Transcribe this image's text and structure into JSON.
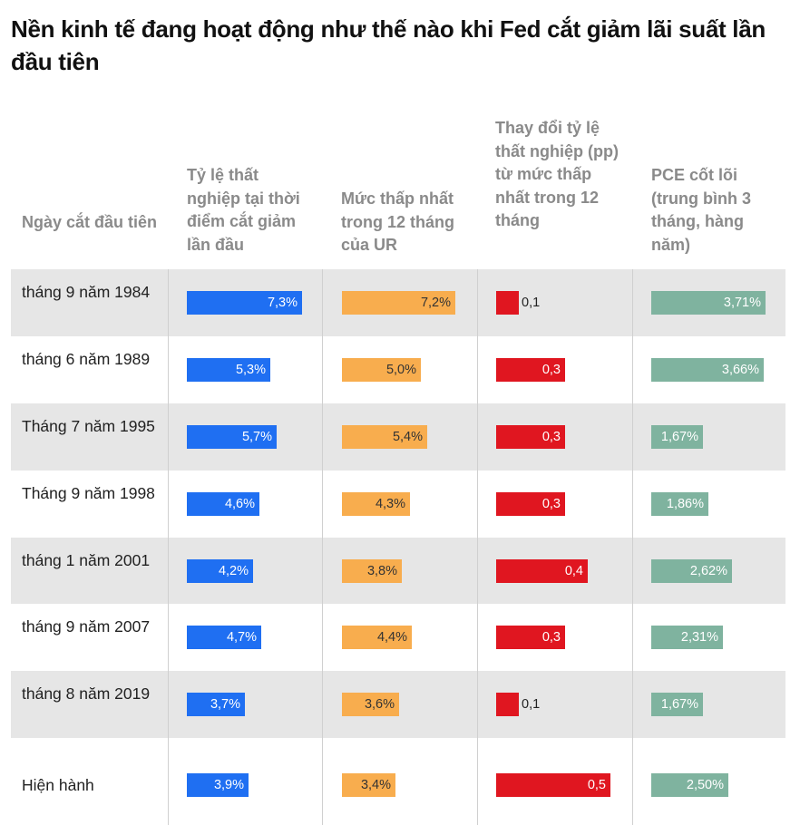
{
  "title": "Nền kinh tế đang hoạt động như thế nào khi Fed cắt giảm lãi suất lần đầu tiên",
  "headers": {
    "date": "Ngày cắt đầu tiên",
    "unemployment": "Tỷ lệ thất nghiệp tại thời điểm cắt giảm lần đầu",
    "ur_low": "Mức thấp nhất trong 12 tháng của UR",
    "change": "Thay đổi tỷ lệ thất nghiệp (pp) từ mức thấp nhất trong 12 tháng",
    "pce": "PCE cốt lõi (trung bình 3 tháng, hàng năm)"
  },
  "colors": {
    "unemployment": "#1f6ff2",
    "ur_low": "#f8ad4e",
    "change": "#e01620",
    "pce": "#7fb39f",
    "row_shade": "#e6e6e6"
  },
  "chart_data": {
    "type": "table",
    "columns": [
      "Ngày cắt đầu tiên",
      "Tỷ lệ thất nghiệp tại thời điểm cắt giảm lần đầu",
      "Mức thấp nhất trong 12 tháng của UR",
      "Thay đổi tỷ lệ thất nghiệp (pp) từ mức thấp nhất trong 12 tháng",
      "PCE cốt lõi (trung bình 3 tháng, hàng năm)"
    ],
    "rows": [
      {
        "date": "tháng 9 năm 1984",
        "unemployment": 7.3,
        "unemployment_label": "7,3%",
        "ur_low": 7.2,
        "ur_low_label": "7,2%",
        "change": 0.1,
        "change_label": "0,1",
        "pce": 3.71,
        "pce_label": "3,71%"
      },
      {
        "date": "tháng 6 năm 1989",
        "unemployment": 5.3,
        "unemployment_label": "5,3%",
        "ur_low": 5.0,
        "ur_low_label": "5,0%",
        "change": 0.3,
        "change_label": "0,3",
        "pce": 3.66,
        "pce_label": "3,66%"
      },
      {
        "date": "Tháng 7 năm 1995",
        "unemployment": 5.7,
        "unemployment_label": "5,7%",
        "ur_low": 5.4,
        "ur_low_label": "5,4%",
        "change": 0.3,
        "change_label": "0,3",
        "pce": 1.67,
        "pce_label": "1,67%"
      },
      {
        "date": "Tháng 9 năm 1998",
        "unemployment": 4.6,
        "unemployment_label": "4,6%",
        "ur_low": 4.3,
        "ur_low_label": "4,3%",
        "change": 0.3,
        "change_label": "0,3",
        "pce": 1.86,
        "pce_label": "1,86%"
      },
      {
        "date": "tháng 1 năm 2001",
        "unemployment": 4.2,
        "unemployment_label": "4,2%",
        "ur_low": 3.8,
        "ur_low_label": "3,8%",
        "change": 0.4,
        "change_label": "0,4",
        "pce": 2.62,
        "pce_label": "2,62%"
      },
      {
        "date": "tháng 9 năm 2007",
        "unemployment": 4.7,
        "unemployment_label": "4,7%",
        "ur_low": 4.4,
        "ur_low_label": "4,4%",
        "change": 0.3,
        "change_label": "0,3",
        "pce": 2.31,
        "pce_label": "2,31%"
      },
      {
        "date": "tháng 8 năm 2019",
        "unemployment": 3.7,
        "unemployment_label": "3,7%",
        "ur_low": 3.6,
        "ur_low_label": "3,6%",
        "change": 0.1,
        "change_label": "0,1",
        "pce": 1.67,
        "pce_label": "1,67%"
      },
      {
        "date": "Hiện hành",
        "unemployment": 3.9,
        "unemployment_label": "3,9%",
        "ur_low": 3.4,
        "ur_low_label": "3,4%",
        "change": 0.5,
        "change_label": "0,5",
        "pce": 2.5,
        "pce_label": "2,50%"
      }
    ]
  }
}
